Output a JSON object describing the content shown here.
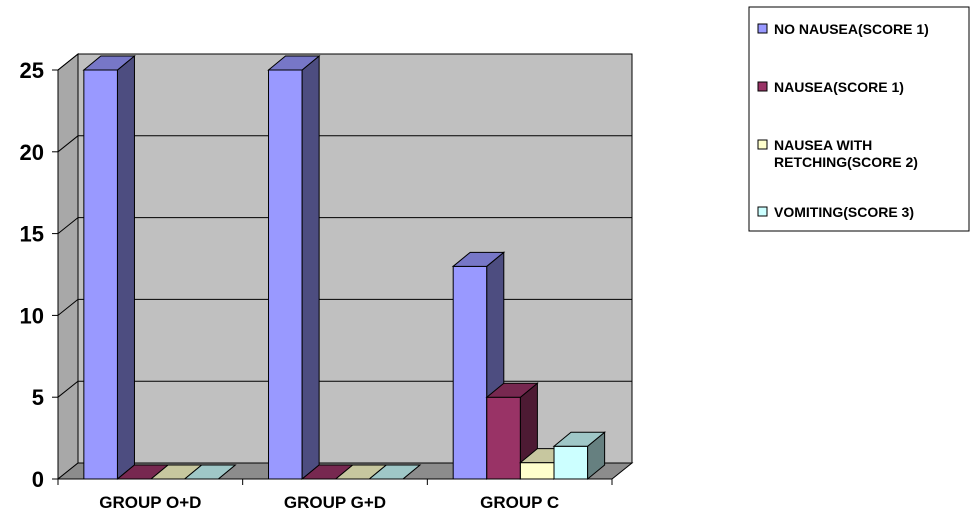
{
  "chart_data": {
    "type": "bar",
    "style": "3d-clustered-column",
    "categories": [
      "GROUP O+D",
      "GROUP G+D",
      "GROUP C"
    ],
    "series": [
      {
        "name": "NO NAUSEA(SCORE 1)",
        "values": [
          25,
          25,
          13
        ],
        "color": "#9999ff"
      },
      {
        "name": "NAUSEA(SCORE 1)",
        "values": [
          0,
          0,
          5
        ],
        "color": "#993366"
      },
      {
        "name": "NAUSEA WITH RETCHING(SCORE 2)",
        "values": [
          0,
          0,
          1
        ],
        "color": "#ffffcc"
      },
      {
        "name": "VOMITING(SCORE 3)",
        "values": [
          0,
          0,
          2
        ],
        "color": "#ccffff"
      }
    ],
    "yticks": [
      "0",
      "5",
      "10",
      "15",
      "20",
      "25"
    ],
    "ylim": [
      0,
      25
    ],
    "grid": true,
    "wall_color": "#c0c0c0",
    "legend_position": "top-right",
    "title": "",
    "xlabel": "",
    "ylabel": ""
  }
}
